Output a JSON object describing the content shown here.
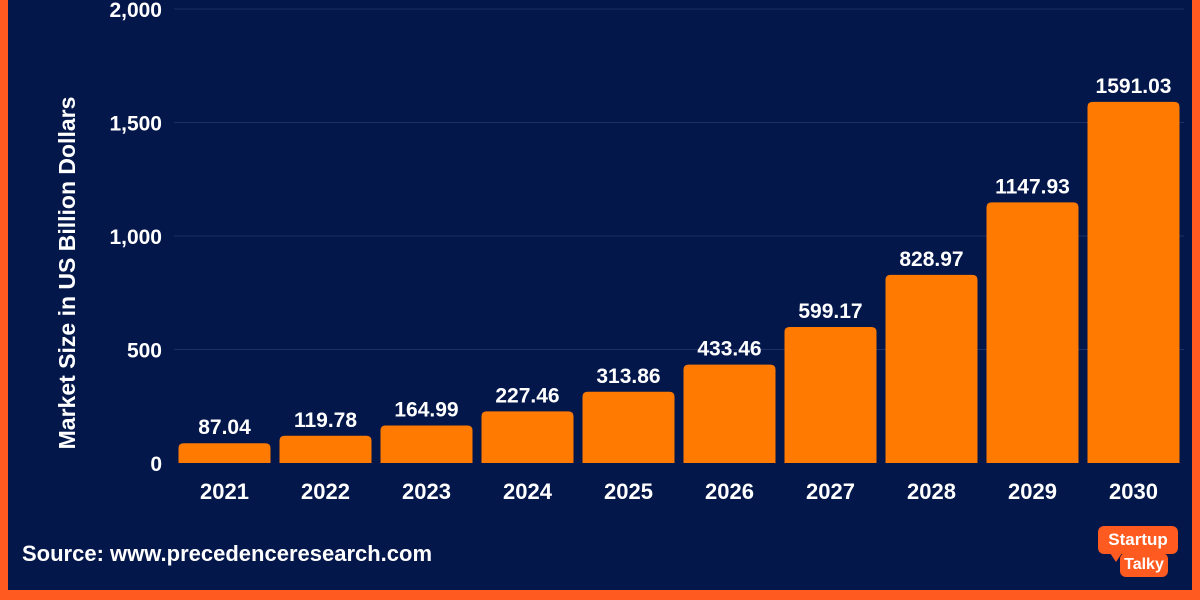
{
  "chart_data": {
    "type": "bar",
    "title": "",
    "xlabel": "",
    "ylabel": "Market Size in US Billion Dollars",
    "ylim": [
      0,
      2000
    ],
    "yticks": [
      0,
      500,
      1000,
      1500,
      2000
    ],
    "ytick_labels": [
      "0",
      "500",
      "1,000",
      "1,500",
      "2,000"
    ],
    "grid": true,
    "categories": [
      "2021",
      "2022",
      "2023",
      "2024",
      "2025",
      "2026",
      "2027",
      "2028",
      "2029",
      "2030"
    ],
    "values": [
      87.04,
      119.78,
      164.99,
      227.46,
      313.86,
      433.46,
      599.17,
      828.97,
      1147.93,
      1591.03
    ],
    "value_labels": [
      "87.04",
      "119.78",
      "164.99",
      "227.46",
      "313.86",
      "433.46",
      "599.17",
      "828.97",
      "1147.93",
      "1591.03"
    ],
    "bar_color": "#ff7a00",
    "background_color": "#04174b",
    "frame_color": "#ff5a1f"
  },
  "footer": {
    "source": "Source: www.precedenceresearch.com"
  },
  "logo": {
    "line1": "Startup",
    "line2": "Talky"
  }
}
